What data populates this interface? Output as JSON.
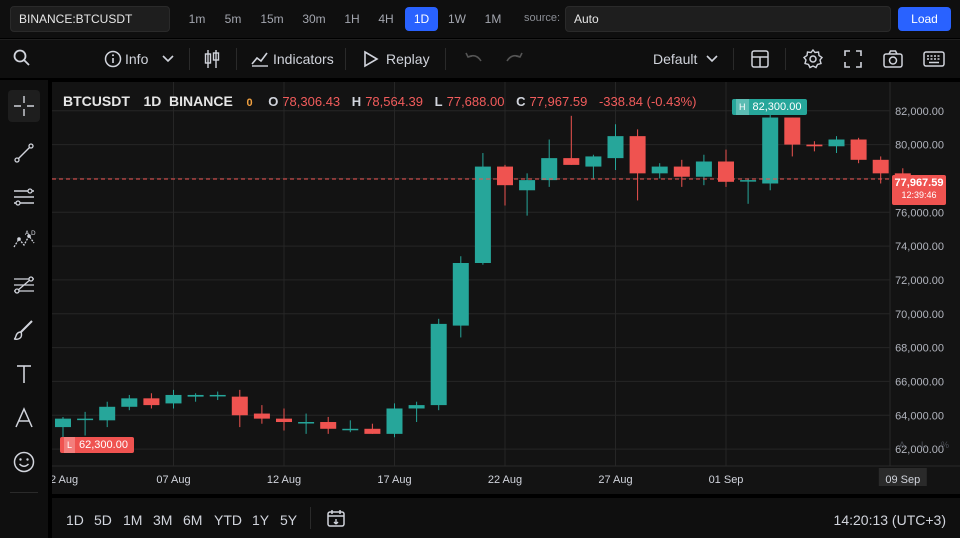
{
  "topbar": {
    "symbol": "BINANCE:BTCUSDT",
    "timeframes": [
      "1m",
      "5m",
      "15m",
      "30m",
      "1H",
      "4H",
      "1D",
      "1W",
      "1M"
    ],
    "active_timeframe": "1D",
    "source_label": "source:",
    "source_value": "Auto",
    "load_label": "Load"
  },
  "toolbar": {
    "info_label": "Info",
    "indicators_label": "Indicators",
    "replay_label": "Replay",
    "layout_label": "Default"
  },
  "left_tools": [
    "crosshair-icon",
    "trend-line-icon",
    "fib-icon",
    "pattern-icon",
    "forecast-icon",
    "brush-icon",
    "text-icon",
    "font-icon",
    "emoji-icon",
    "magnet-icon"
  ],
  "legend": {
    "symbol": "BTCUSDT",
    "interval": "1D",
    "exchange": "BINANCE",
    "indicator_count": "0",
    "open_key": "O",
    "open": "78,306.43",
    "high_key": "H",
    "high": "78,564.39",
    "low_key": "L",
    "low": "77,688.00",
    "close_key": "C",
    "close": "77,967.59",
    "change": "-338.84 (-0.43%)"
  },
  "markers": {
    "high_tag": "H",
    "high_value": "82,300.00",
    "low_tag": "L",
    "low_value": "62,300.00",
    "last_price": "77,967.59",
    "countdown": "12:39:46"
  },
  "scale_buttons": [
    "A",
    "L",
    "%"
  ],
  "bottombar": {
    "ranges": [
      "1D",
      "5D",
      "1M",
      "3M",
      "6M",
      "YTD",
      "1Y",
      "5Y"
    ],
    "clock": "14:20:13 (UTC+3)"
  },
  "colors": {
    "up": "#26a69a",
    "down": "#ef5350",
    "accent": "#2962ff"
  },
  "chart_data": {
    "type": "candlestick",
    "ylim": [
      61000,
      83700
    ],
    "y_ticks": [
      62000,
      64000,
      66000,
      68000,
      70000,
      72000,
      74000,
      76000,
      78000,
      80000,
      82000
    ],
    "y_tick_labels": [
      "62,000.00",
      "64,000.00",
      "66,000.00",
      "68,000.00",
      "70,000.00",
      "72,000.00",
      "74,000.00",
      "76,000.00",
      "78,000.00",
      "80,000.00",
      "82,000.00"
    ],
    "x_tick_labels": [
      "2 Aug",
      "07 Aug",
      "12 Aug",
      "17 Aug",
      "22 Aug",
      "27 Aug",
      "01 Sep",
      "09 Sep"
    ],
    "x_tick_index": [
      0,
      5,
      10,
      15,
      20,
      25,
      30,
      38
    ],
    "dates": [
      "02 Aug",
      "03 Aug",
      "04 Aug",
      "05 Aug",
      "06 Aug",
      "07 Aug",
      "08 Aug",
      "09 Aug",
      "10 Aug",
      "11 Aug",
      "12 Aug",
      "13 Aug",
      "14 Aug",
      "15 Aug",
      "16 Aug",
      "17 Aug",
      "18 Aug",
      "19 Aug",
      "20 Aug",
      "21 Aug",
      "22 Aug",
      "23 Aug",
      "24 Aug",
      "25 Aug",
      "26 Aug",
      "27 Aug",
      "28 Aug",
      "29 Aug",
      "30 Aug",
      "31 Aug",
      "01 Sep",
      "02 Sep",
      "03 Sep",
      "04 Sep",
      "05 Sep",
      "06 Sep",
      "07 Sep",
      "08 Sep",
      "09 Sep"
    ],
    "ohlc": [
      [
        63300,
        63900,
        62300,
        63800
      ],
      [
        63800,
        64200,
        62800,
        63800
      ],
      [
        63700,
        64800,
        63300,
        64500
      ],
      [
        64500,
        65200,
        64300,
        65000
      ],
      [
        65000,
        65300,
        64400,
        64600
      ],
      [
        64700,
        65500,
        64400,
        65200
      ],
      [
        65100,
        65300,
        64800,
        65200
      ],
      [
        65200,
        65400,
        64900,
        65200
      ],
      [
        65100,
        65500,
        63300,
        64000
      ],
      [
        64100,
        64600,
        63500,
        63800
      ],
      [
        63800,
        64400,
        63100,
        63600
      ],
      [
        63600,
        64100,
        62900,
        63600
      ],
      [
        63600,
        63900,
        62900,
        63200
      ],
      [
        63200,
        63700,
        63000,
        63200
      ],
      [
        63200,
        63500,
        62900,
        62900
      ],
      [
        62900,
        64700,
        62700,
        64400
      ],
      [
        64400,
        64800,
        63600,
        64600
      ],
      [
        64600,
        69700,
        64300,
        69400
      ],
      [
        69300,
        73400,
        68600,
        73000
      ],
      [
        73000,
        79500,
        72900,
        78700
      ],
      [
        78700,
        78800,
        76400,
        77600
      ],
      [
        77300,
        78300,
        75800,
        77900
      ],
      [
        77900,
        80300,
        77500,
        79200
      ],
      [
        79200,
        81700,
        78800,
        78800
      ],
      [
        78700,
        79400,
        78000,
        79300
      ],
      [
        79200,
        81200,
        78500,
        80500
      ],
      [
        80500,
        80900,
        76700,
        78300
      ],
      [
        78300,
        78900,
        78000,
        78700
      ],
      [
        78700,
        79100,
        77500,
        78100
      ],
      [
        78100,
        79400,
        77600,
        79000
      ],
      [
        79000,
        79700,
        77500,
        77800
      ],
      [
        77900,
        78000,
        76500,
        77900
      ],
      [
        77700,
        82300,
        77300,
        81600
      ],
      [
        81600,
        81600,
        79300,
        80000
      ],
      [
        80000,
        80200,
        79600,
        79900
      ],
      [
        79900,
        80500,
        79500,
        80300
      ],
      [
        80300,
        80400,
        78900,
        79100
      ],
      [
        79100,
        79300,
        77700,
        78300
      ],
      [
        78300,
        78600,
        77700,
        77968
      ]
    ]
  }
}
